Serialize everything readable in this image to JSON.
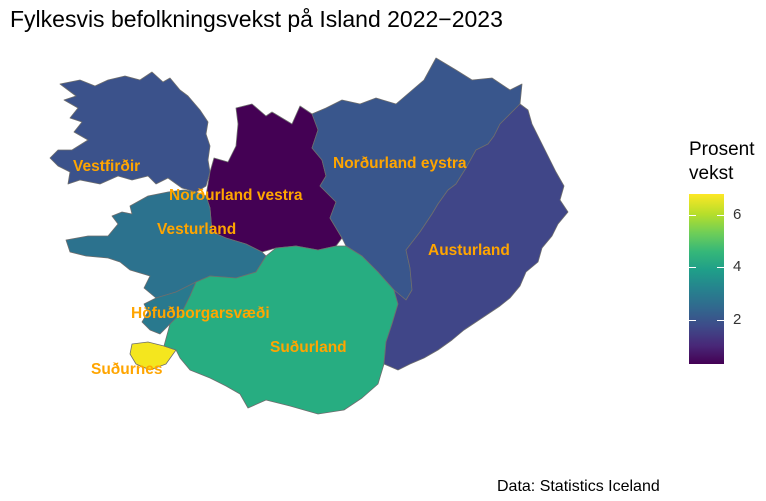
{
  "title": "Fylkesvis befolkningsvekst på Island 2022−2023",
  "caption": "Data: Statistics Iceland",
  "legend": {
    "title_line1": "Prosent",
    "title_line2": "vekst",
    "scale_min": 0.3,
    "scale_max": 6.8,
    "ticks": [
      {
        "value": 2,
        "label": "2"
      },
      {
        "value": 4,
        "label": "4"
      },
      {
        "value": 6,
        "label": "6"
      }
    ]
  },
  "regions": [
    {
      "key": "vestfirdir",
      "label": "Vestfirðir",
      "growth": 1.9,
      "color": "#3b528b"
    },
    {
      "key": "nordurland-vestra",
      "label": "Norðurland vestra",
      "growth": 0.3,
      "color": "#440154"
    },
    {
      "key": "nordurland-eystra",
      "label": "Norðurland eystra",
      "growth": 2.0,
      "color": "#39568c"
    },
    {
      "key": "vesturland",
      "label": "Vesturland",
      "growth": 2.7,
      "color": "#2c728e"
    },
    {
      "key": "austurland",
      "label": "Austurland",
      "growth": 1.6,
      "color": "#404688"
    },
    {
      "key": "hofudborgarsvaedi",
      "label": "Höfuðborgarsvæði",
      "growth": 2.9,
      "color": "#29798e"
    },
    {
      "key": "sudurland",
      "label": "Suðurland",
      "growth": 4.3,
      "color": "#27ad81"
    },
    {
      "key": "sudurnes",
      "label": "Suðurnes",
      "growth": 6.6,
      "color": "#f4e61e"
    }
  ]
}
